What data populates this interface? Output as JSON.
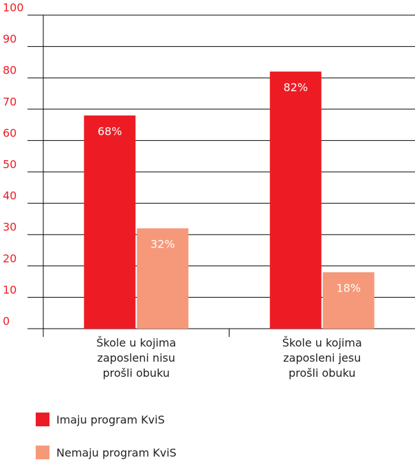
{
  "chart_data": {
    "type": "bar",
    "categories": [
      "Škole u kojima zaposleni nisu prošli obuku",
      "Škole u kojima zaposleni jesu prošli obuku"
    ],
    "series": [
      {
        "name": "Imaju program KviS",
        "color": "#ed1c24",
        "values": [
          68,
          82
        ],
        "value_labels": [
          "68%",
          "82%"
        ]
      },
      {
        "name": "Nemaju program KviS",
        "color": "#f6997a",
        "values": [
          32,
          18
        ],
        "value_labels": [
          "32%",
          "18%"
        ]
      }
    ],
    "ylim": [
      0,
      100
    ],
    "yticks": [
      0,
      10,
      20,
      30,
      40,
      50,
      60,
      70,
      80,
      90,
      100
    ],
    "grid": true,
    "legend": "bottom"
  }
}
